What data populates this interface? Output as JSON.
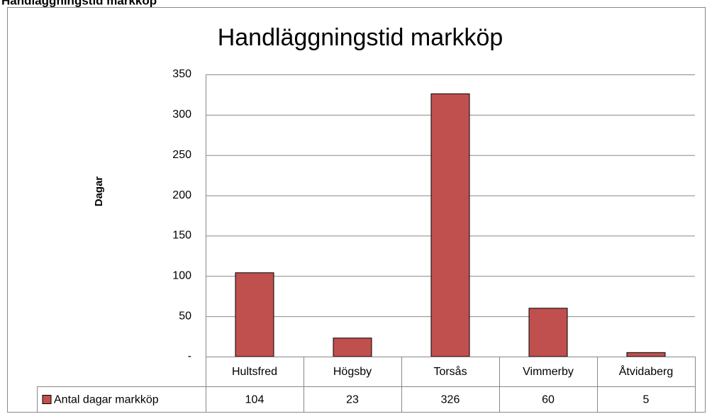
{
  "heading": "Handläggningstid markköp",
  "chart_data": {
    "type": "bar",
    "title": "Handläggningstid markköp",
    "y_label": "Dagar",
    "categories": [
      "Hultsfred",
      "Högsby",
      "Torsås",
      "Vimmerby",
      "Åtvidaberg"
    ],
    "series": [
      {
        "name": "Antal dagar markköp",
        "color": "#c0504d",
        "values": [
          104,
          23,
          326,
          60,
          5
        ]
      }
    ],
    "ylim": [
      0,
      350
    ],
    "yticks": [
      {
        "value": 0,
        "label": "-"
      },
      50,
      100,
      150,
      200,
      250,
      300,
      350
    ],
    "grid": true,
    "data_table": true
  }
}
